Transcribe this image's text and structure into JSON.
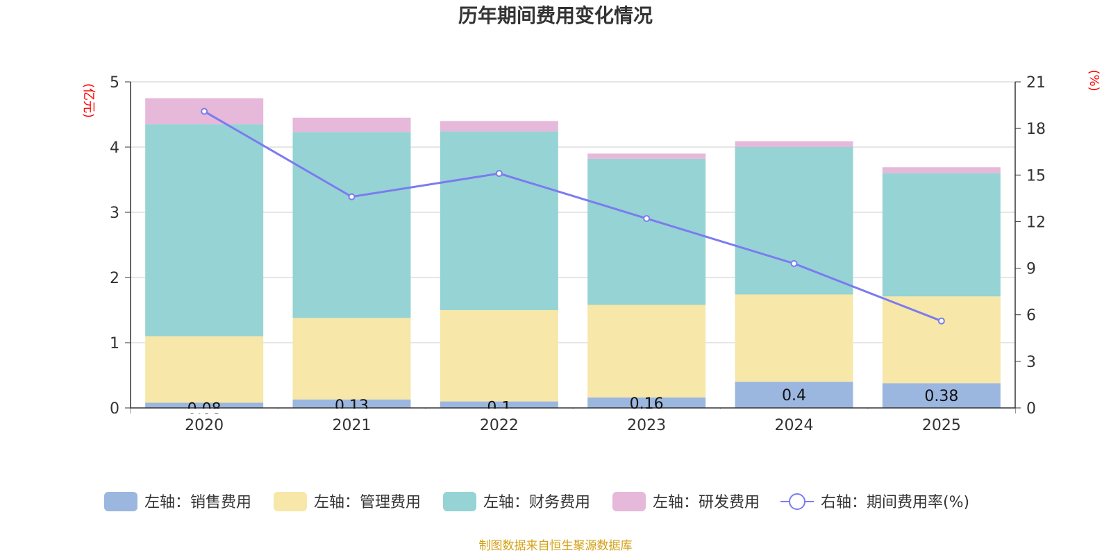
{
  "chart_data": {
    "type": "bar",
    "stacked": true,
    "title": "历年期间费用变化情况",
    "categories": [
      "2020",
      "2021",
      "2022",
      "2023",
      "2024",
      "2025"
    ],
    "left_axis": {
      "unit": "(亿元)",
      "ylim": [
        0,
        5
      ],
      "ticks": [
        "0",
        "1",
        "2",
        "3",
        "4",
        "5"
      ]
    },
    "right_axis": {
      "unit": "(%)",
      "ylim": [
        0,
        21
      ],
      "ticks": [
        "0",
        "3",
        "6",
        "9",
        "12",
        "15",
        "18",
        "21"
      ]
    },
    "series": [
      {
        "name": "左轴：销售费用",
        "axis": "left",
        "type": "bar",
        "color": "#9bb7e0",
        "values": [
          0.08,
          0.13,
          0.1,
          0.16,
          0.4,
          0.38
        ],
        "labels": [
          "0.08",
          "0.13",
          "0.1",
          "0.16",
          "0.4",
          "0.38"
        ]
      },
      {
        "name": "左轴：管理费用",
        "axis": "left",
        "type": "bar",
        "color": "#f7e7a8",
        "values": [
          1.02,
          1.25,
          1.4,
          1.42,
          1.34,
          1.33
        ]
      },
      {
        "name": "左轴：财务费用",
        "axis": "left",
        "type": "bar",
        "color": "#96d3d4",
        "values": [
          3.25,
          2.85,
          2.74,
          2.24,
          2.26,
          1.89
        ]
      },
      {
        "name": "左轴：研发费用",
        "axis": "left",
        "type": "bar",
        "color": "#e6b8d9",
        "values": [
          0.4,
          0.22,
          0.16,
          0.08,
          0.09,
          0.09
        ]
      },
      {
        "name": "右轴：期间费用率(%)",
        "axis": "right",
        "type": "line",
        "color": "#7b7bf0",
        "values": [
          19.1,
          13.6,
          15.1,
          12.2,
          9.3,
          5.6
        ]
      }
    ],
    "legend_position": "bottom",
    "grid": true
  },
  "source": "制图数据来自恒生聚源数据库",
  "colors": {
    "axis_unit": "#ff0000",
    "source": "#d4a017",
    "grid": "#cccccc"
  }
}
